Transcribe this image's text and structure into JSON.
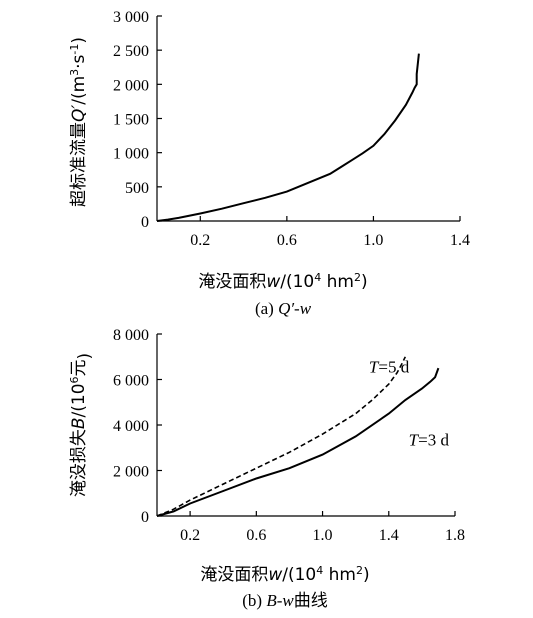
{
  "chart_data": [
    {
      "type": "line",
      "title": "",
      "caption": {
        "prefix": "(a) ",
        "italic": "Q′-w",
        "suffix": ""
      },
      "xlabel": {
        "text": "淹没面积",
        "italic": "w",
        "rest": "/(10",
        "sup": "4",
        "tail": " hm",
        "sup2": "2",
        "end": ")"
      },
      "ylabel": {
        "text": "超标准流量",
        "italic": "Q′",
        "rest": "/(m",
        "sup": "3",
        "mid": "·s",
        "sup2": "-1",
        "end": ")"
      },
      "xlim": [
        0,
        1.4
      ],
      "ylim": [
        0,
        3000
      ],
      "xticks": [
        0.2,
        0.6,
        1.0,
        1.4
      ],
      "xtick_labels": [
        "0.2",
        "0.6",
        "1.0",
        "1.4"
      ],
      "yticks": [
        0,
        500,
        1000,
        1500,
        2000,
        2500,
        3000
      ],
      "ytick_labels": [
        "0",
        "500",
        "1 000",
        "1 500",
        "2 000",
        "2 500",
        "3 000"
      ],
      "grid": false,
      "series": [
        {
          "style": "solid",
          "x": [
            0.0,
            0.05,
            0.1,
            0.2,
            0.3,
            0.4,
            0.5,
            0.6,
            0.7,
            0.8,
            0.85,
            0.9,
            0.95,
            1.0,
            1.05,
            1.1,
            1.15,
            1.18,
            1.19,
            1.2,
            1.2,
            1.21
          ],
          "y": [
            0,
            20,
            45,
            110,
            180,
            260,
            340,
            430,
            560,
            690,
            790,
            890,
            990,
            1100,
            1270,
            1470,
            1700,
            1880,
            1950,
            2000,
            2150,
            2450
          ]
        }
      ]
    },
    {
      "type": "line",
      "title": "",
      "caption": {
        "prefix": "(b) ",
        "italic": "B-w",
        "suffix": "曲线"
      },
      "xlabel": {
        "text": "淹没面积",
        "italic": "w",
        "rest": "/(10",
        "sup": "4",
        "tail": " hm",
        "sup2": "2",
        "end": ")"
      },
      "ylabel": {
        "text": "淹没损失",
        "italic": "B",
        "rest": "/(10",
        "sup": "6",
        "mid": "元",
        "sup2": "",
        "end": ")"
      },
      "xlim": [
        0,
        1.8
      ],
      "ylim": [
        0,
        8000
      ],
      "xticks": [
        0.2,
        0.6,
        1.0,
        1.4,
        1.8
      ],
      "xtick_labels": [
        "0.2",
        "0.6",
        "1.0",
        "1.4",
        "1.8"
      ],
      "yticks": [
        0,
        2000,
        4000,
        6000,
        8000
      ],
      "ytick_labels": [
        "0",
        "2 000",
        "4 000",
        "6 000",
        "8 000"
      ],
      "grid": false,
      "series": [
        {
          "name": "T=3 d",
          "style": "solid",
          "x": [
            0.0,
            0.1,
            0.2,
            0.4,
            0.6,
            0.8,
            1.0,
            1.2,
            1.4,
            1.5,
            1.6,
            1.65,
            1.68,
            1.7
          ],
          "y": [
            0,
            200,
            550,
            1100,
            1650,
            2100,
            2700,
            3500,
            4500,
            5100,
            5600,
            5900,
            6100,
            6500
          ]
        },
        {
          "name": "T=5 d",
          "style": "dashed",
          "x": [
            0.0,
            0.1,
            0.2,
            0.4,
            0.6,
            0.8,
            1.0,
            1.2,
            1.3,
            1.4,
            1.45,
            1.48,
            1.5
          ],
          "y": [
            0,
            300,
            700,
            1400,
            2100,
            2800,
            3600,
            4500,
            5100,
            5800,
            6300,
            6700,
            7000
          ]
        }
      ],
      "annotations": [
        {
          "series": "T=5 d",
          "italic": "T",
          "rest": "=5 d",
          "x": 1.28,
          "y": 6300
        },
        {
          "series": "T=3 d",
          "italic": "T",
          "rest": "=3 d",
          "x": 1.52,
          "y": 3100
        }
      ]
    }
  ]
}
